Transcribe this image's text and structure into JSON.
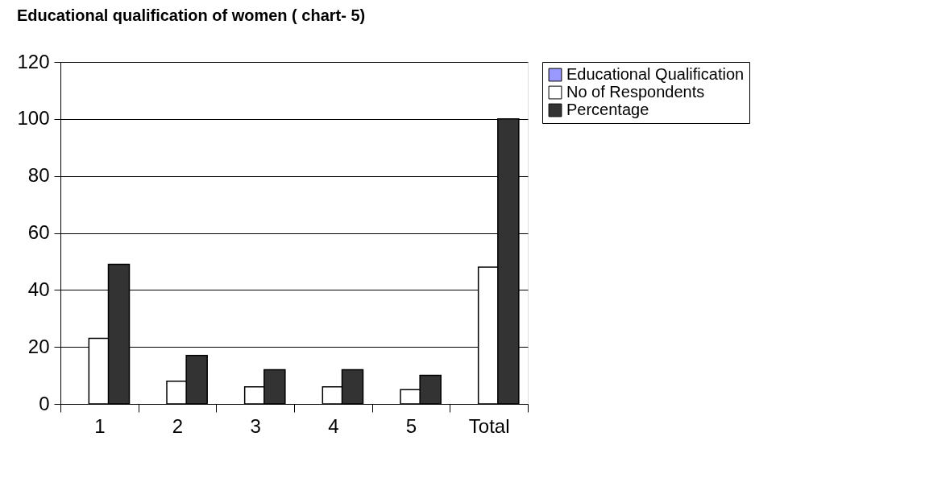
{
  "chart_data": {
    "type": "bar",
    "title": "Educational qualification of  women ( chart- 5)",
    "categories": [
      "1",
      "2",
      "3",
      "4",
      "5",
      "Total"
    ],
    "series": [
      {
        "name": "Educational Qualification",
        "color": "#9999ff",
        "values": [
          null,
          null,
          null,
          null,
          null,
          null
        ]
      },
      {
        "name": "No of Respondents",
        "color": "#ffffff",
        "values": [
          23,
          8,
          6,
          6,
          5,
          48
        ]
      },
      {
        "name": "Percentage",
        "color": "#333333",
        "values": [
          49,
          17,
          12,
          12,
          10,
          100
        ]
      }
    ],
    "ylim": [
      0,
      120
    ],
    "yticks": [
      0,
      20,
      40,
      60,
      80,
      100,
      120
    ],
    "grid": "y",
    "legend": "right"
  }
}
